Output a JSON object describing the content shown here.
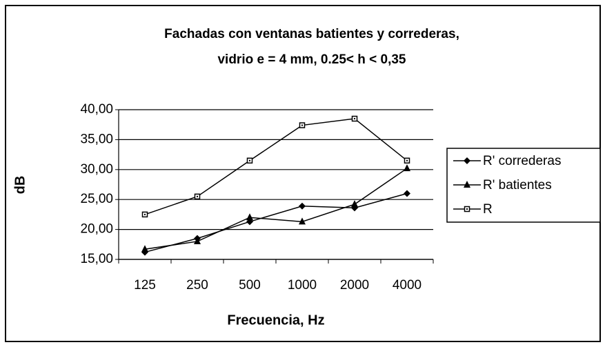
{
  "chart_data": {
    "type": "line",
    "title": [
      "Fachadas con ventanas batientes y correderas,",
      "vidrio e = 4 mm, 0.25< h < 0,35"
    ],
    "x_label": "Frecuencia, Hz",
    "y_label": "dB",
    "categories": [
      "125",
      "250",
      "500",
      "1000",
      "2000",
      "4000"
    ],
    "series": [
      {
        "name": "R' correderas",
        "color": "#000000",
        "marker": "diamond",
        "values": [
          16.2,
          18.5,
          21.3,
          23.9,
          23.6,
          26.0
        ]
      },
      {
        "name": "R' batientes",
        "color": "#000000",
        "marker": "triangle",
        "values": [
          16.7,
          18.0,
          22.0,
          21.3,
          24.2,
          30.2
        ]
      },
      {
        "name": "R",
        "color": "#000000",
        "marker": "square",
        "values": [
          22.5,
          25.5,
          31.5,
          37.4,
          38.5,
          31.5
        ]
      }
    ],
    "ylim": [
      15,
      40
    ],
    "yticks": [
      {
        "value": 15,
        "label": "15,00"
      },
      {
        "value": 20,
        "label": "20,00"
      },
      {
        "value": 25,
        "label": "25,00"
      },
      {
        "value": 30,
        "label": "30,00"
      },
      {
        "value": 35,
        "label": "35,00"
      },
      {
        "value": 40,
        "label": "40,00"
      }
    ],
    "grid": true,
    "legend": "right"
  }
}
